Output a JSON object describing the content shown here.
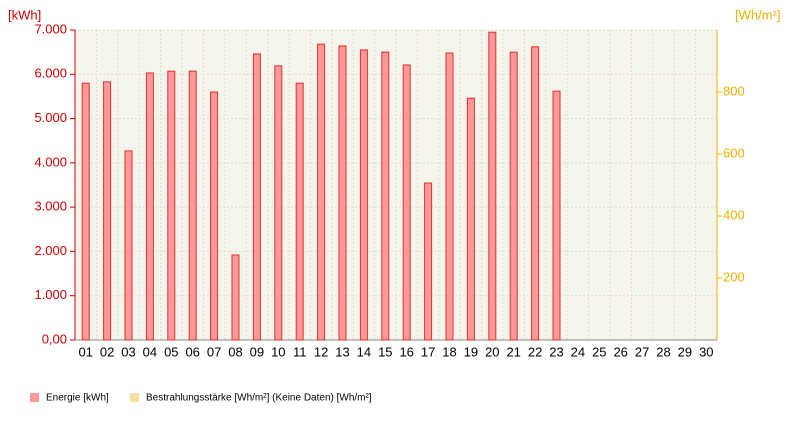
{
  "chart_data": {
    "type": "bar",
    "y_label": "[kWh]",
    "y2_label": "[Wh/m²]",
    "categories": [
      "01",
      "02",
      "03",
      "04",
      "05",
      "06",
      "07",
      "08",
      "09",
      "10",
      "11",
      "12",
      "13",
      "14",
      "15",
      "16",
      "17",
      "18",
      "19",
      "20",
      "21",
      "22",
      "23",
      "24",
      "25",
      "26",
      "27",
      "28",
      "29",
      "30"
    ],
    "series": [
      {
        "name": "Energie [kWh]",
        "color": "#ff9999",
        "values": [
          5800,
          5830,
          4270,
          6030,
          6070,
          6070,
          5600,
          1920,
          6460,
          6190,
          5800,
          6680,
          6640,
          6550,
          6500,
          6210,
          3545,
          6480,
          5460,
          6950,
          6500,
          6620,
          5620,
          null,
          null,
          null,
          null,
          null,
          null,
          null
        ]
      },
      {
        "name": "Bestrahlungsstärke [Wh/m²] (Keine Daten) [Wh/m²]",
        "color": "#f8e0a0",
        "axis": "y2",
        "values": [
          null,
          null,
          null,
          null,
          null,
          null,
          null,
          null,
          null,
          null,
          null,
          null,
          null,
          null,
          null,
          null,
          null,
          null,
          null,
          null,
          null,
          null,
          null,
          null,
          null,
          null,
          null,
          null,
          null,
          null
        ]
      }
    ],
    "ylim": [
      0,
      7000
    ],
    "yticks": [
      {
        "value": 0,
        "label": "0,00"
      },
      {
        "value": 1000,
        "label": "1.000"
      },
      {
        "value": 2000,
        "label": "2.000"
      },
      {
        "value": 3000,
        "label": "3.000"
      },
      {
        "value": 4000,
        "label": "4.000"
      },
      {
        "value": 5000,
        "label": "5.000"
      },
      {
        "value": 6000,
        "label": "6.000"
      },
      {
        "value": 7000,
        "label": "7.000"
      }
    ],
    "y2lim": [
      0,
      1000
    ],
    "y2ticks": [
      200,
      400,
      600,
      800
    ],
    "grid": true
  }
}
